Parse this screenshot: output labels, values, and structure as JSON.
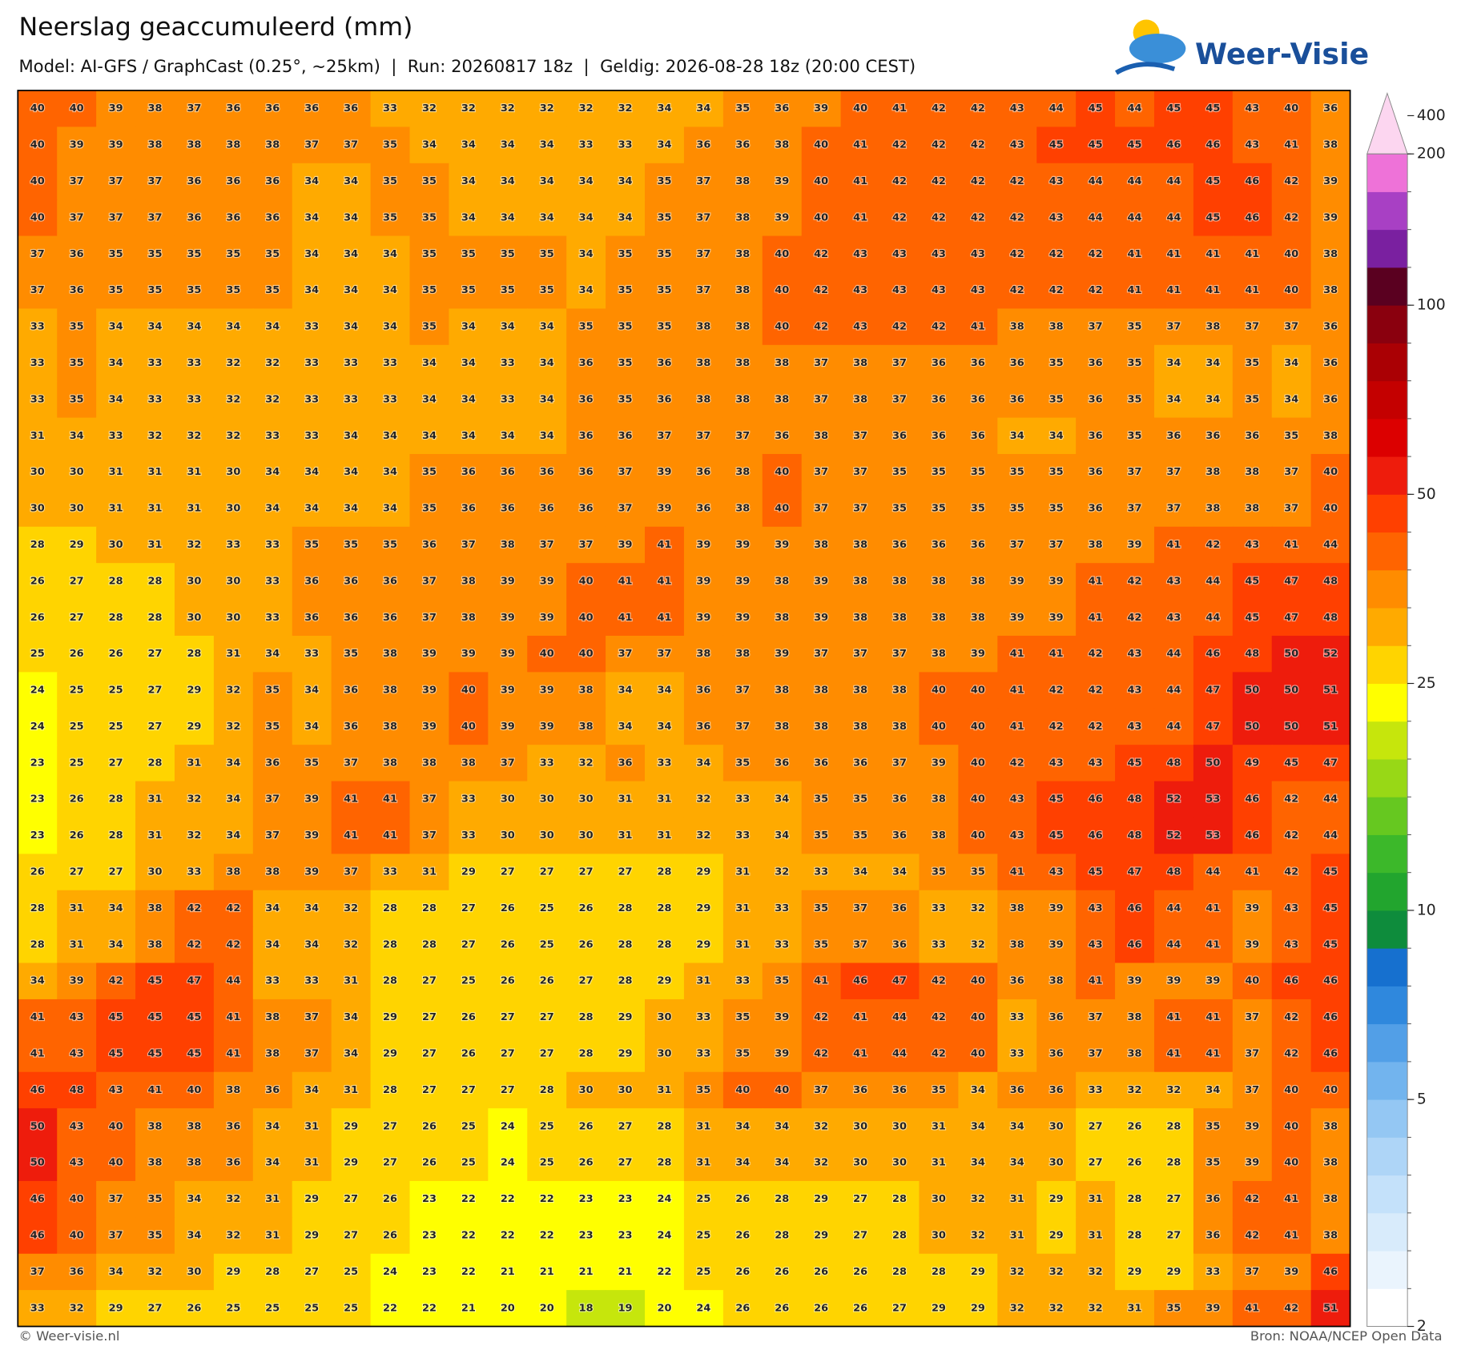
{
  "header": {
    "title": "Neerslag geaccumuleerd (mm)",
    "subtitle": "Model: AI-GFS / GraphCast (0.25°, ~25km)  |  Run: 20260817 18z  |  Geldig: 2026-08-28 18z (20:00 CEST)",
    "logo": "Weer-Visie"
  },
  "grid": {
    "rows": [
      [
        40,
        40,
        39,
        38,
        37,
        36,
        36,
        36,
        36,
        33,
        32,
        32,
        32,
        32,
        32,
        32,
        34,
        34,
        35,
        36,
        39,
        40,
        41,
        42,
        42,
        43,
        44,
        45,
        44,
        45,
        45,
        43,
        40,
        36
      ],
      [
        40,
        39,
        39,
        38,
        38,
        38,
        38,
        37,
        37,
        35,
        34,
        34,
        34,
        34,
        33,
        33,
        34,
        36,
        36,
        38,
        40,
        41,
        42,
        42,
        42,
        43,
        45,
        45,
        45,
        46,
        46,
        43,
        41,
        38
      ],
      [
        40,
        37,
        37,
        37,
        36,
        36,
        36,
        34,
        34,
        35,
        35,
        34,
        34,
        34,
        34,
        34,
        35,
        37,
        38,
        39,
        40,
        41,
        42,
        42,
        42,
        42,
        43,
        44,
        44,
        44,
        45,
        46,
        42,
        39
      ],
      [
        40,
        37,
        37,
        37,
        36,
        36,
        36,
        34,
        34,
        35,
        35,
        34,
        34,
        34,
        34,
        34,
        35,
        37,
        38,
        39,
        40,
        41,
        42,
        42,
        42,
        42,
        43,
        44,
        44,
        44,
        45,
        46,
        42,
        39
      ],
      [
        37,
        36,
        35,
        35,
        35,
        35,
        35,
        34,
        34,
        34,
        35,
        35,
        35,
        35,
        34,
        35,
        35,
        37,
        38,
        40,
        42,
        43,
        43,
        43,
        43,
        42,
        42,
        42,
        41,
        41,
        41,
        41,
        40,
        38
      ],
      [
        37,
        36,
        35,
        35,
        35,
        35,
        35,
        34,
        34,
        34,
        35,
        35,
        35,
        35,
        34,
        35,
        35,
        37,
        38,
        40,
        42,
        43,
        43,
        43,
        43,
        42,
        42,
        42,
        41,
        41,
        41,
        41,
        40,
        38
      ],
      [
        33,
        35,
        34,
        34,
        34,
        34,
        34,
        33,
        34,
        34,
        35,
        34,
        34,
        34,
        35,
        35,
        35,
        38,
        38,
        40,
        42,
        43,
        42,
        42,
        41,
        38,
        38,
        37,
        35,
        37,
        38,
        37,
        37,
        36
      ],
      [
        33,
        35,
        34,
        33,
        33,
        32,
        32,
        33,
        33,
        33,
        34,
        34,
        33,
        34,
        36,
        35,
        36,
        38,
        38,
        38,
        37,
        38,
        37,
        36,
        36,
        36,
        35,
        36,
        35,
        34,
        34,
        35,
        34,
        36
      ],
      [
        33,
        35,
        34,
        33,
        33,
        32,
        32,
        33,
        33,
        33,
        34,
        34,
        33,
        34,
        36,
        35,
        36,
        38,
        38,
        38,
        37,
        38,
        37,
        36,
        36,
        36,
        35,
        36,
        35,
        34,
        34,
        35,
        34,
        36
      ],
      [
        31,
        34,
        33,
        32,
        32,
        32,
        33,
        33,
        34,
        34,
        34,
        34,
        34,
        34,
        36,
        36,
        37,
        37,
        37,
        36,
        38,
        37,
        36,
        36,
        36,
        34,
        34,
        36,
        35,
        36,
        36,
        36,
        35,
        38
      ],
      [
        30,
        30,
        31,
        31,
        31,
        30,
        34,
        34,
        34,
        34,
        35,
        36,
        36,
        36,
        36,
        37,
        39,
        36,
        38,
        40,
        37,
        37,
        35,
        35,
        35,
        35,
        35,
        36,
        37,
        37,
        38,
        38,
        37,
        40
      ],
      [
        30,
        30,
        31,
        31,
        31,
        30,
        34,
        34,
        34,
        34,
        35,
        36,
        36,
        36,
        36,
        37,
        39,
        36,
        38,
        40,
        37,
        37,
        35,
        35,
        35,
        35,
        35,
        36,
        37,
        37,
        38,
        38,
        37,
        40
      ],
      [
        28,
        29,
        30,
        31,
        32,
        33,
        33,
        35,
        35,
        35,
        36,
        37,
        38,
        37,
        37,
        39,
        41,
        39,
        39,
        39,
        38,
        38,
        36,
        36,
        36,
        37,
        37,
        38,
        39,
        41,
        42,
        43,
        41,
        44
      ],
      [
        26,
        27,
        28,
        28,
        30,
        30,
        33,
        36,
        36,
        36,
        37,
        38,
        39,
        39,
        40,
        41,
        41,
        39,
        39,
        38,
        39,
        38,
        38,
        38,
        38,
        39,
        39,
        41,
        42,
        43,
        44,
        45,
        47,
        48
      ],
      [
        26,
        27,
        28,
        28,
        30,
        30,
        33,
        36,
        36,
        36,
        37,
        38,
        39,
        39,
        40,
        41,
        41,
        39,
        39,
        38,
        39,
        38,
        38,
        38,
        38,
        39,
        39,
        41,
        42,
        43,
        44,
        45,
        47,
        48
      ],
      [
        25,
        26,
        26,
        27,
        28,
        31,
        34,
        33,
        35,
        38,
        39,
        39,
        39,
        40,
        40,
        37,
        37,
        38,
        38,
        39,
        37,
        37,
        37,
        38,
        39,
        41,
        41,
        42,
        43,
        44,
        46,
        48,
        50,
        52
      ],
      [
        24,
        25,
        25,
        27,
        29,
        32,
        35,
        34,
        36,
        38,
        39,
        40,
        39,
        39,
        38,
        34,
        34,
        36,
        37,
        38,
        38,
        38,
        38,
        40,
        40,
        41,
        42,
        42,
        43,
        44,
        47,
        50,
        50,
        51
      ],
      [
        24,
        25,
        25,
        27,
        29,
        32,
        35,
        34,
        36,
        38,
        39,
        40,
        39,
        39,
        38,
        34,
        34,
        36,
        37,
        38,
        38,
        38,
        38,
        40,
        40,
        41,
        42,
        42,
        43,
        44,
        47,
        50,
        50,
        51
      ],
      [
        23,
        25,
        27,
        28,
        31,
        34,
        36,
        35,
        37,
        38,
        38,
        38,
        37,
        33,
        32,
        36,
        33,
        34,
        35,
        36,
        36,
        36,
        37,
        39,
        40,
        42,
        43,
        43,
        45,
        48,
        50,
        49,
        45,
        47
      ],
      [
        23,
        26,
        28,
        31,
        32,
        34,
        37,
        39,
        41,
        41,
        37,
        33,
        30,
        30,
        30,
        31,
        31,
        32,
        33,
        34,
        35,
        35,
        36,
        38,
        40,
        43,
        45,
        46,
        48,
        52,
        53,
        46,
        42,
        44
      ],
      [
        23,
        26,
        28,
        31,
        32,
        34,
        37,
        39,
        41,
        41,
        37,
        33,
        30,
        30,
        30,
        31,
        31,
        32,
        33,
        34,
        35,
        35,
        36,
        38,
        40,
        43,
        45,
        46,
        48,
        52,
        53,
        46,
        42,
        44
      ],
      [
        26,
        27,
        27,
        30,
        33,
        38,
        38,
        39,
        37,
        33,
        31,
        29,
        27,
        27,
        27,
        27,
        28,
        29,
        31,
        32,
        33,
        34,
        34,
        35,
        35,
        41,
        43,
        45,
        47,
        48,
        44,
        41,
        42,
        45
      ],
      [
        28,
        31,
        34,
        38,
        42,
        42,
        34,
        34,
        32,
        28,
        28,
        27,
        26,
        25,
        26,
        28,
        28,
        29,
        31,
        33,
        35,
        37,
        36,
        33,
        32,
        38,
        39,
        43,
        46,
        44,
        41,
        39,
        43,
        45
      ],
      [
        28,
        31,
        34,
        38,
        42,
        42,
        34,
        34,
        32,
        28,
        28,
        27,
        26,
        25,
        26,
        28,
        28,
        29,
        31,
        33,
        35,
        37,
        36,
        33,
        32,
        38,
        39,
        43,
        46,
        44,
        41,
        39,
        43,
        45
      ],
      [
        34,
        39,
        42,
        45,
        47,
        44,
        33,
        33,
        31,
        28,
        27,
        25,
        26,
        26,
        27,
        28,
        29,
        31,
        33,
        35,
        41,
        46,
        47,
        42,
        40,
        36,
        38,
        41,
        39,
        39,
        39,
        40,
        46,
        46
      ],
      [
        41,
        43,
        45,
        45,
        45,
        41,
        38,
        37,
        34,
        29,
        27,
        26,
        27,
        27,
        28,
        29,
        30,
        33,
        35,
        39,
        42,
        41,
        44,
        42,
        40,
        33,
        36,
        37,
        38,
        41,
        41,
        37,
        42,
        46
      ],
      [
        41,
        43,
        45,
        45,
        45,
        41,
        38,
        37,
        34,
        29,
        27,
        26,
        27,
        27,
        28,
        29,
        30,
        33,
        35,
        39,
        42,
        41,
        44,
        42,
        40,
        33,
        36,
        37,
        38,
        41,
        41,
        37,
        42,
        46
      ],
      [
        46,
        48,
        43,
        41,
        40,
        38,
        36,
        34,
        31,
        28,
        27,
        27,
        27,
        28,
        30,
        30,
        31,
        35,
        40,
        40,
        37,
        36,
        36,
        35,
        34,
        36,
        36,
        33,
        32,
        32,
        34,
        37,
        40,
        40
      ],
      [
        50,
        43,
        40,
        38,
        38,
        36,
        34,
        31,
        29,
        27,
        26,
        25,
        24,
        25,
        26,
        27,
        28,
        31,
        34,
        34,
        32,
        30,
        30,
        31,
        34,
        34,
        30,
        27,
        26,
        28,
        35,
        39,
        40,
        38
      ],
      [
        50,
        43,
        40,
        38,
        38,
        36,
        34,
        31,
        29,
        27,
        26,
        25,
        24,
        25,
        26,
        27,
        28,
        31,
        34,
        34,
        32,
        30,
        30,
        31,
        34,
        34,
        30,
        27,
        26,
        28,
        35,
        39,
        40,
        38
      ],
      [
        46,
        40,
        37,
        35,
        34,
        32,
        31,
        29,
        27,
        26,
        23,
        22,
        22,
        22,
        23,
        23,
        24,
        25,
        26,
        28,
        29,
        27,
        28,
        30,
        32,
        31,
        29,
        31,
        28,
        27,
        36,
        42,
        41,
        38
      ],
      [
        46,
        40,
        37,
        35,
        34,
        32,
        31,
        29,
        27,
        26,
        23,
        22,
        22,
        22,
        23,
        23,
        24,
        25,
        26,
        28,
        29,
        27,
        28,
        30,
        32,
        31,
        29,
        31,
        28,
        27,
        36,
        42,
        41,
        38
      ],
      [
        37,
        36,
        34,
        32,
        30,
        29,
        28,
        27,
        25,
        24,
        23,
        22,
        21,
        21,
        21,
        21,
        22,
        25,
        26,
        26,
        26,
        26,
        28,
        28,
        29,
        32,
        32,
        32,
        29,
        29,
        33,
        37,
        39,
        46
      ],
      [
        33,
        32,
        29,
        27,
        26,
        25,
        25,
        25,
        25,
        22,
        22,
        21,
        20,
        20,
        18,
        19,
        20,
        24,
        26,
        26,
        26,
        26,
        27,
        29,
        29,
        32,
        32,
        32,
        31,
        35,
        39,
        41,
        42,
        51
      ]
    ]
  },
  "colorbar": {
    "ticks": [
      2,
      5,
      10,
      25,
      50,
      100,
      200,
      400
    ],
    "levels": [
      2,
      2.5,
      3,
      3.5,
      4,
      4.5,
      5,
      6,
      7,
      8,
      9,
      10,
      12,
      14,
      16,
      18,
      20,
      25,
      30,
      35,
      40,
      45,
      50,
      60,
      70,
      80,
      90,
      100,
      125,
      150,
      175,
      200
    ],
    "colors": [
      "#ffffff",
      "#eaf4fd",
      "#d8ebfb",
      "#c4e1fa",
      "#aed5f7",
      "#94c7f3",
      "#72b4ee",
      "#529fe7",
      "#2f88dd",
      "#1670cf",
      "#0e8c3c",
      "#22a52e",
      "#3cb82a",
      "#66c820",
      "#98d816",
      "#c6e60c",
      "#ffff00",
      "#ffd400",
      "#ffaa00",
      "#ff8c00",
      "#ff6400",
      "#ff4000",
      "#ee1c0c",
      "#dc0000",
      "#c40000",
      "#aa0004",
      "#8a000e",
      "#5a0020",
      "#7a20a0",
      "#a840c4",
      "#ee72d8"
    ],
    "over_color": "#fcd6f0"
  },
  "footer": {
    "left": "© Weer-visie.nl",
    "right": "Bron: NOAA/NCEP Open Data"
  }
}
